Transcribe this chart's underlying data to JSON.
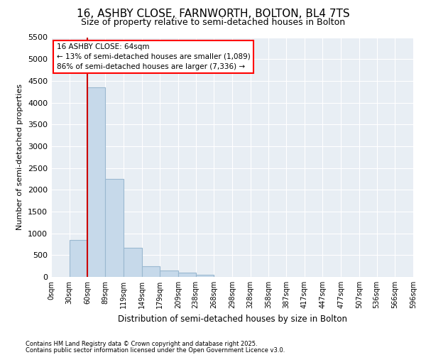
{
  "title_line1": "16, ASHBY CLOSE, FARNWORTH, BOLTON, BL4 7TS",
  "title_line2": "Size of property relative to semi-detached houses in Bolton",
  "xlabel": "Distribution of semi-detached houses by size in Bolton",
  "ylabel": "Number of semi-detached properties",
  "bar_color": "#c6d9ea",
  "bar_edge_color": "#9ab8d0",
  "annotation_title": "16 ASHBY CLOSE: 64sqm",
  "annotation_line1": "← 13% of semi-detached houses are smaller (1,089)",
  "annotation_line2": "86% of semi-detached houses are larger (7,336) →",
  "vline_color": "#cc0000",
  "vline_x": 60,
  "footnote1": "Contains HM Land Registry data © Crown copyright and database right 2025.",
  "footnote2": "Contains public sector information licensed under the Open Government Licence v3.0.",
  "bin_edges": [
    0,
    30,
    60,
    89,
    119,
    149,
    179,
    209,
    238,
    268,
    298,
    328,
    358,
    387,
    417,
    447,
    477,
    507,
    536,
    566,
    596
  ],
  "bin_labels": [
    "0sqm",
    "30sqm",
    "60sqm",
    "89sqm",
    "119sqm",
    "149sqm",
    "179sqm",
    "209sqm",
    "238sqm",
    "268sqm",
    "298sqm",
    "328sqm",
    "358sqm",
    "387sqm",
    "417sqm",
    "447sqm",
    "477sqm",
    "507sqm",
    "536sqm",
    "566sqm",
    "596sqm"
  ],
  "bar_heights": [
    5,
    850,
    4350,
    2250,
    670,
    250,
    150,
    90,
    50,
    0,
    0,
    0,
    0,
    0,
    0,
    0,
    0,
    0,
    0,
    0
  ],
  "ylim": [
    0,
    5500
  ],
  "yticks": [
    0,
    500,
    1000,
    1500,
    2000,
    2500,
    3000,
    3500,
    4000,
    4500,
    5000,
    5500
  ],
  "fig_bg": "#ffffff",
  "plot_bg": "#e8eef4",
  "grid_color": "#ffffff"
}
